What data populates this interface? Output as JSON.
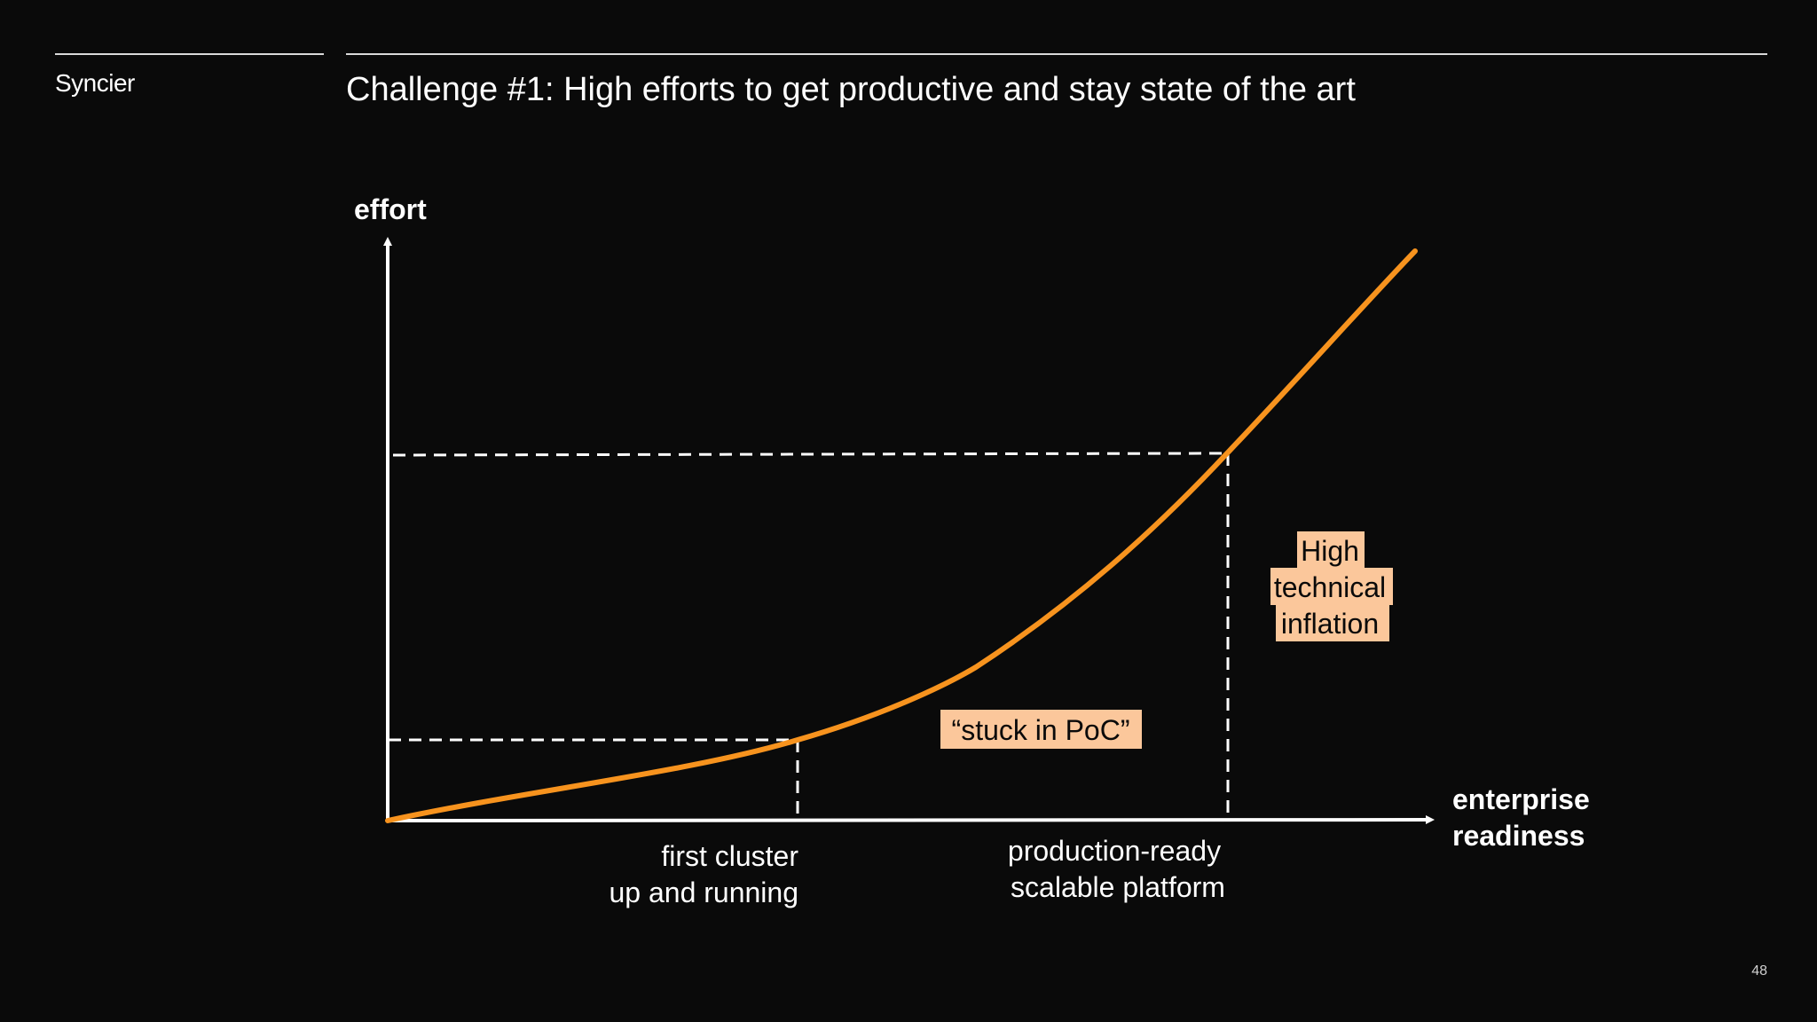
{
  "header": {
    "brand": "Syncier",
    "title": "Challenge #1: High efforts to get productive and stay state of the art"
  },
  "diagram": {
    "y_axis_label": "effort",
    "x_axis_label_lines": [
      "enterprise",
      "readiness"
    ],
    "milestones": {
      "first": [
        "first cluster",
        "up and running"
      ],
      "second": [
        "production-ready",
        "scalable platform"
      ]
    },
    "callouts": {
      "poc": "“stuck in PoC”",
      "inflation": [
        "High",
        "technical",
        "inflation"
      ]
    },
    "colors": {
      "background": "#0a0a0a",
      "curve": "#f7931e",
      "callout_fill": "#fbc79b",
      "axis": "#ffffff"
    }
  },
  "footer": {
    "page_number": "48"
  }
}
